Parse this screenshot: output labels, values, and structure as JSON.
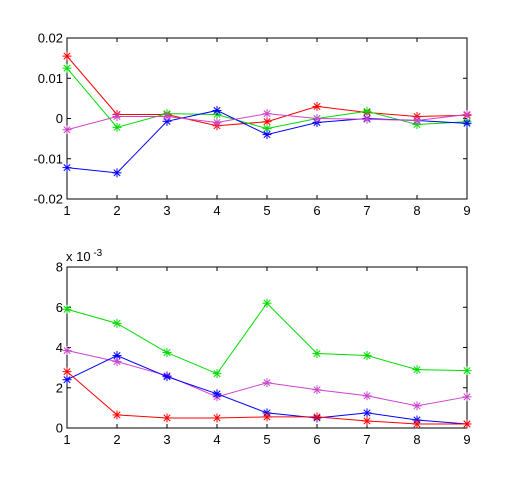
{
  "chart_data": [
    {
      "type": "line",
      "title": "",
      "xlabel": "",
      "ylabel": "",
      "x": [
        1,
        2,
        3,
        4,
        5,
        6,
        7,
        8,
        9
      ],
      "xlim": [
        1,
        9
      ],
      "ylim": [
        -0.02,
        0.02
      ],
      "xticks": [
        "1",
        "2",
        "3",
        "4",
        "5",
        "6",
        "7",
        "8",
        "9"
      ],
      "yticks": [
        {
          "value": -0.02,
          "label": "-0.02"
        },
        {
          "value": -0.01,
          "label": "-0.01"
        },
        {
          "value": 0,
          "label": "0"
        },
        {
          "value": 0.01,
          "label": "0.01"
        },
        {
          "value": 0.02,
          "label": "0.02"
        }
      ],
      "grid": false,
      "marker": "*",
      "series": [
        {
          "color": "#ff0000",
          "values": [
            0.0155,
            0.001,
            0.001,
            -0.0018,
            -0.0008,
            0.003,
            0.0015,
            0.0005,
            0.0008
          ]
        },
        {
          "color": "#00dd00",
          "values": [
            0.0125,
            -0.0022,
            0.0012,
            0.001,
            -0.0025,
            0.0,
            0.0018,
            -0.0015,
            -0.0008
          ]
        },
        {
          "color": "#0000ff",
          "values": [
            -0.0122,
            -0.0135,
            -0.0007,
            0.002,
            -0.004,
            -0.001,
            0.0,
            -0.0005,
            -0.0012
          ]
        },
        {
          "color": "#cc44cc",
          "values": [
            -0.0028,
            0.0005,
            0.0005,
            -0.001,
            0.0012,
            0.0,
            -0.0002,
            -0.0005,
            0.001
          ]
        }
      ]
    },
    {
      "type": "line",
      "title": "",
      "xlabel": "",
      "ylabel": "",
      "x": [
        1,
        2,
        3,
        4,
        5,
        6,
        7,
        8,
        9
      ],
      "xlim": [
        1,
        9
      ],
      "ylim": [
        0,
        0.008
      ],
      "y_multiplier": "x 10",
      "y_multiplier_exp": "-3",
      "xticks": [
        "1",
        "2",
        "3",
        "4",
        "5",
        "6",
        "7",
        "8",
        "9"
      ],
      "yticks": [
        {
          "value": 0,
          "label": "0"
        },
        {
          "value": 0.002,
          "label": "2"
        },
        {
          "value": 0.004,
          "label": "4"
        },
        {
          "value": 0.006,
          "label": "6"
        },
        {
          "value": 0.008,
          "label": "8"
        }
      ],
      "grid": false,
      "marker": "*",
      "series": [
        {
          "color": "#00dd00",
          "values": [
            0.0059,
            0.0052,
            0.00375,
            0.0027,
            0.0062,
            0.0037,
            0.0036,
            0.0029,
            0.00285
          ]
        },
        {
          "color": "#cc44cc",
          "values": [
            0.00385,
            0.0033,
            0.0026,
            0.00155,
            0.00225,
            0.0019,
            0.0016,
            0.0011,
            0.00155
          ]
        },
        {
          "color": "#0000ff",
          "values": [
            0.0024,
            0.0036,
            0.00255,
            0.0017,
            0.00075,
            0.0005,
            0.00075,
            0.0004,
            0.0002
          ]
        },
        {
          "color": "#ff0000",
          "values": [
            0.0028,
            0.00065,
            0.0005,
            0.0005,
            0.00055,
            0.00055,
            0.00035,
            0.0002,
            0.0002
          ]
        }
      ]
    }
  ]
}
